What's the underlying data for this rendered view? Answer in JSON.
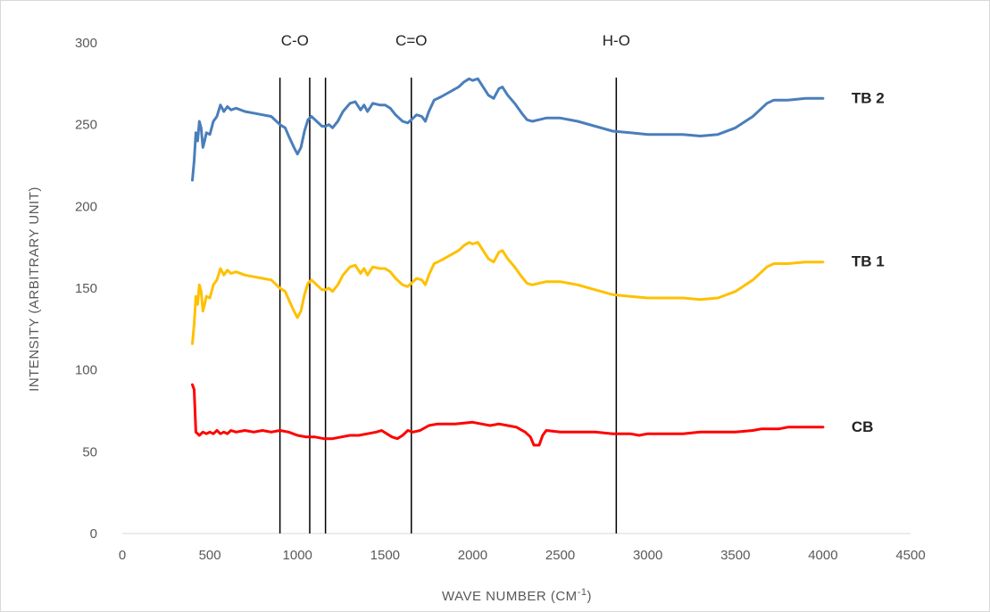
{
  "chart_data": {
    "type": "line",
    "xlabel": "WAVE NUMBER (CM",
    "xlabel_superscript": "-1",
    "xlabel_suffix": ")",
    "ylabel": "INTENSITY (ARBITRARY UNIT)",
    "xlim": [
      0,
      4500
    ],
    "ylim": [
      0,
      300
    ],
    "xticks": [
      0,
      500,
      1000,
      1500,
      2000,
      2500,
      3000,
      3500,
      4000,
      4500
    ],
    "yticks": [
      0,
      50,
      100,
      150,
      200,
      250,
      300
    ],
    "grid": false,
    "legend": "labels at right end of each series",
    "band_markers": [
      {
        "label": "C-O",
        "x": [
          900,
          1070,
          1160
        ]
      },
      {
        "label": "C=O",
        "x": [
          1650
        ]
      },
      {
        "label": "H-O",
        "x": [
          2820
        ]
      }
    ],
    "series": [
      {
        "name": "TB 2",
        "color": "#4a7ebb",
        "points": [
          [
            400,
            216
          ],
          [
            410,
            228
          ],
          [
            420,
            245
          ],
          [
            430,
            240
          ],
          [
            440,
            252
          ],
          [
            450,
            248
          ],
          [
            460,
            236
          ],
          [
            470,
            240
          ],
          [
            480,
            245
          ],
          [
            500,
            244
          ],
          [
            520,
            252
          ],
          [
            540,
            255
          ],
          [
            560,
            262
          ],
          [
            580,
            258
          ],
          [
            600,
            261
          ],
          [
            620,
            259
          ],
          [
            650,
            260
          ],
          [
            700,
            258
          ],
          [
            750,
            257
          ],
          [
            800,
            256
          ],
          [
            850,
            255
          ],
          [
            880,
            252
          ],
          [
            900,
            250
          ],
          [
            930,
            248
          ],
          [
            950,
            243
          ],
          [
            980,
            236
          ],
          [
            1000,
            232
          ],
          [
            1020,
            236
          ],
          [
            1040,
            246
          ],
          [
            1060,
            253
          ],
          [
            1080,
            255
          ],
          [
            1110,
            252
          ],
          [
            1140,
            249
          ],
          [
            1160,
            249
          ],
          [
            1180,
            250
          ],
          [
            1200,
            248
          ],
          [
            1230,
            252
          ],
          [
            1260,
            258
          ],
          [
            1300,
            263
          ],
          [
            1330,
            264
          ],
          [
            1360,
            259
          ],
          [
            1380,
            262
          ],
          [
            1400,
            258
          ],
          [
            1430,
            263
          ],
          [
            1470,
            262
          ],
          [
            1500,
            262
          ],
          [
            1530,
            260
          ],
          [
            1560,
            256
          ],
          [
            1600,
            252
          ],
          [
            1630,
            251
          ],
          [
            1650,
            253
          ],
          [
            1680,
            256
          ],
          [
            1710,
            255
          ],
          [
            1730,
            252
          ],
          [
            1750,
            258
          ],
          [
            1780,
            265
          ],
          [
            1820,
            267
          ],
          [
            1870,
            270
          ],
          [
            1920,
            273
          ],
          [
            1950,
            276
          ],
          [
            1980,
            278
          ],
          [
            2000,
            277
          ],
          [
            2030,
            278
          ],
          [
            2060,
            273
          ],
          [
            2090,
            268
          ],
          [
            2120,
            266
          ],
          [
            2150,
            272
          ],
          [
            2170,
            273
          ],
          [
            2200,
            268
          ],
          [
            2240,
            263
          ],
          [
            2280,
            257
          ],
          [
            2310,
            253
          ],
          [
            2340,
            252
          ],
          [
            2380,
            253
          ],
          [
            2420,
            254
          ],
          [
            2500,
            254
          ],
          [
            2600,
            252
          ],
          [
            2700,
            249
          ],
          [
            2800,
            246
          ],
          [
            2900,
            245
          ],
          [
            3000,
            244
          ],
          [
            3100,
            244
          ],
          [
            3200,
            244
          ],
          [
            3300,
            243
          ],
          [
            3400,
            244
          ],
          [
            3500,
            248
          ],
          [
            3600,
            255
          ],
          [
            3650,
            260
          ],
          [
            3680,
            263
          ],
          [
            3720,
            265
          ],
          [
            3800,
            265
          ],
          [
            3900,
            266
          ],
          [
            4000,
            266
          ]
        ]
      },
      {
        "name": "TB 1",
        "color": "#ffc000",
        "points": [
          [
            400,
            116
          ],
          [
            410,
            128
          ],
          [
            420,
            145
          ],
          [
            430,
            140
          ],
          [
            440,
            152
          ],
          [
            450,
            148
          ],
          [
            460,
            136
          ],
          [
            470,
            140
          ],
          [
            480,
            145
          ],
          [
            500,
            144
          ],
          [
            520,
            152
          ],
          [
            540,
            155
          ],
          [
            560,
            162
          ],
          [
            580,
            158
          ],
          [
            600,
            161
          ],
          [
            620,
            159
          ],
          [
            650,
            160
          ],
          [
            700,
            158
          ],
          [
            750,
            157
          ],
          [
            800,
            156
          ],
          [
            850,
            155
          ],
          [
            880,
            152
          ],
          [
            900,
            150
          ],
          [
            930,
            148
          ],
          [
            950,
            143
          ],
          [
            980,
            136
          ],
          [
            1000,
            132
          ],
          [
            1020,
            136
          ],
          [
            1040,
            146
          ],
          [
            1060,
            153
          ],
          [
            1080,
            155
          ],
          [
            1110,
            152
          ],
          [
            1140,
            149
          ],
          [
            1160,
            149
          ],
          [
            1180,
            150
          ],
          [
            1200,
            148
          ],
          [
            1230,
            152
          ],
          [
            1260,
            158
          ],
          [
            1300,
            163
          ],
          [
            1330,
            164
          ],
          [
            1360,
            159
          ],
          [
            1380,
            162
          ],
          [
            1400,
            158
          ],
          [
            1430,
            163
          ],
          [
            1470,
            162
          ],
          [
            1500,
            162
          ],
          [
            1530,
            160
          ],
          [
            1560,
            156
          ],
          [
            1600,
            152
          ],
          [
            1630,
            151
          ],
          [
            1650,
            153
          ],
          [
            1680,
            156
          ],
          [
            1710,
            155
          ],
          [
            1730,
            152
          ],
          [
            1750,
            158
          ],
          [
            1780,
            165
          ],
          [
            1820,
            167
          ],
          [
            1870,
            170
          ],
          [
            1920,
            173
          ],
          [
            1950,
            176
          ],
          [
            1980,
            178
          ],
          [
            2000,
            177
          ],
          [
            2030,
            178
          ],
          [
            2060,
            173
          ],
          [
            2090,
            168
          ],
          [
            2120,
            166
          ],
          [
            2150,
            172
          ],
          [
            2170,
            173
          ],
          [
            2200,
            168
          ],
          [
            2240,
            163
          ],
          [
            2280,
            157
          ],
          [
            2310,
            153
          ],
          [
            2340,
            152
          ],
          [
            2380,
            153
          ],
          [
            2420,
            154
          ],
          [
            2500,
            154
          ],
          [
            2600,
            152
          ],
          [
            2700,
            149
          ],
          [
            2800,
            146
          ],
          [
            2900,
            145
          ],
          [
            3000,
            144
          ],
          [
            3100,
            144
          ],
          [
            3200,
            144
          ],
          [
            3300,
            143
          ],
          [
            3400,
            144
          ],
          [
            3500,
            148
          ],
          [
            3600,
            155
          ],
          [
            3650,
            160
          ],
          [
            3680,
            163
          ],
          [
            3720,
            165
          ],
          [
            3800,
            165
          ],
          [
            3900,
            166
          ],
          [
            4000,
            166
          ]
        ]
      },
      {
        "name": "CB",
        "color": "#ff0000",
        "points": [
          [
            400,
            91
          ],
          [
            410,
            88
          ],
          [
            420,
            62
          ],
          [
            430,
            61
          ],
          [
            440,
            60
          ],
          [
            460,
            62
          ],
          [
            480,
            61
          ],
          [
            500,
            62
          ],
          [
            520,
            61
          ],
          [
            540,
            63
          ],
          [
            560,
            61
          ],
          [
            580,
            62
          ],
          [
            600,
            61
          ],
          [
            620,
            63
          ],
          [
            650,
            62
          ],
          [
            700,
            63
          ],
          [
            750,
            62
          ],
          [
            800,
            63
          ],
          [
            850,
            62
          ],
          [
            900,
            63
          ],
          [
            950,
            62
          ],
          [
            1000,
            60
          ],
          [
            1050,
            59
          ],
          [
            1100,
            59
          ],
          [
            1150,
            58
          ],
          [
            1200,
            58
          ],
          [
            1250,
            59
          ],
          [
            1300,
            60
          ],
          [
            1350,
            60
          ],
          [
            1400,
            61
          ],
          [
            1450,
            62
          ],
          [
            1480,
            63
          ],
          [
            1510,
            61
          ],
          [
            1540,
            59
          ],
          [
            1570,
            58
          ],
          [
            1600,
            60
          ],
          [
            1630,
            63
          ],
          [
            1660,
            62
          ],
          [
            1700,
            63
          ],
          [
            1750,
            66
          ],
          [
            1800,
            67
          ],
          [
            1900,
            67
          ],
          [
            2000,
            68
          ],
          [
            2050,
            67
          ],
          [
            2100,
            66
          ],
          [
            2150,
            67
          ],
          [
            2200,
            66
          ],
          [
            2250,
            65
          ],
          [
            2300,
            62
          ],
          [
            2330,
            59
          ],
          [
            2350,
            54
          ],
          [
            2380,
            54
          ],
          [
            2400,
            60
          ],
          [
            2420,
            63
          ],
          [
            2500,
            62
          ],
          [
            2600,
            62
          ],
          [
            2700,
            62
          ],
          [
            2800,
            61
          ],
          [
            2900,
            61
          ],
          [
            2950,
            60
          ],
          [
            3000,
            61
          ],
          [
            3100,
            61
          ],
          [
            3200,
            61
          ],
          [
            3300,
            62
          ],
          [
            3400,
            62
          ],
          [
            3500,
            62
          ],
          [
            3600,
            63
          ],
          [
            3650,
            64
          ],
          [
            3700,
            64
          ],
          [
            3750,
            64
          ],
          [
            3800,
            65
          ],
          [
            3900,
            65
          ],
          [
            4000,
            65
          ]
        ]
      }
    ]
  }
}
